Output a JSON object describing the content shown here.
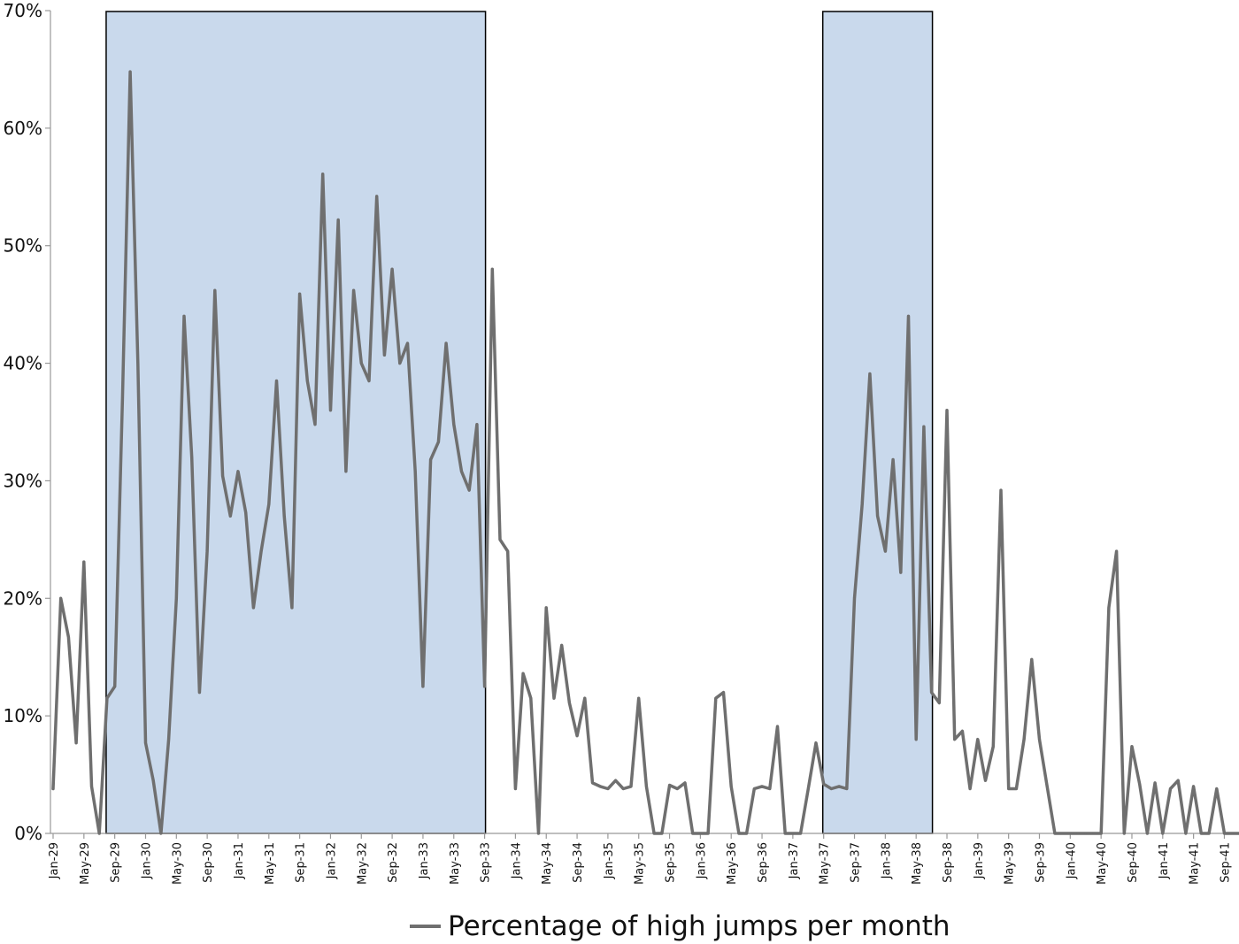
{
  "chart_data": {
    "type": "line",
    "series": [
      {
        "name": "Percentage of high jumps per month",
        "color": "#6f6f6f",
        "start_month": "Jan-29",
        "values": [
          3.8,
          20,
          16.7,
          7.7,
          23.1,
          4,
          0,
          11.5,
          12.5,
          37,
          64.8,
          40,
          7.7,
          4.5,
          0,
          8,
          20,
          44,
          32,
          12,
          24,
          46.2,
          30.4,
          27,
          30.8,
          27.3,
          19.2,
          24,
          28,
          38.5,
          27,
          19.2,
          45.9,
          38.5,
          34.8,
          56.1,
          36,
          52.2,
          30.8,
          46.2,
          40,
          38.5,
          54.2,
          40.7,
          48,
          40,
          41.7,
          30.8,
          12.5,
          31.8,
          33.3,
          41.7,
          34.8,
          30.8,
          29.2,
          34.8,
          12.5,
          48,
          25,
          24,
          3.8,
          13.6,
          11.5,
          0,
          19.2,
          11.5,
          16,
          11.1,
          8.3,
          11.5,
          4.3,
          4,
          3.8,
          4.5,
          3.8,
          4,
          11.5,
          4,
          0,
          0,
          4.1,
          3.8,
          4.3,
          0,
          0,
          0,
          11.5,
          12,
          4,
          0,
          0,
          3.8,
          4,
          3.8,
          9.1,
          0,
          0,
          0,
          3.8,
          7.7,
          4.2,
          3.8,
          4,
          3.8,
          20,
          28,
          39.1,
          27,
          24,
          31.8,
          22.2,
          44,
          8,
          34.6,
          12,
          11.1,
          36,
          8,
          8.7,
          3.8,
          8,
          4.5,
          7.4,
          29.2,
          3.8,
          3.8,
          8,
          14.8,
          8,
          4,
          0,
          0,
          0,
          0,
          0,
          0,
          0,
          19.2,
          24,
          0,
          7.4,
          4.2,
          0,
          4.3,
          0,
          3.8,
          4.5,
          0,
          4,
          0,
          0,
          3.8,
          0,
          0,
          0,
          0
        ]
      }
    ],
    "x_tick_labels": [
      "Jan-29",
      "May-29",
      "Sep-29",
      "Jan-30",
      "May-30",
      "Sep-30",
      "Jan-31",
      "May-31",
      "Sep-31",
      "Jan-32",
      "May-32",
      "Sep-32",
      "Jan-33",
      "May-33",
      "Sep-33",
      "Jan-34",
      "May-34",
      "Sep-34",
      "Jan-35",
      "May-35",
      "Sep-35",
      "Jan-36",
      "May-36",
      "Sep-36",
      "Jan-37",
      "May-37",
      "Sep-37",
      "Jan-38",
      "May-38",
      "Sep-38",
      "Jan-39",
      "May-39",
      "Sep-39",
      "Jan-40",
      "May-40",
      "Sep-40",
      "Jan-41",
      "May-41",
      "Sep-41"
    ],
    "y_tick_labels": [
      "0%",
      "10%",
      "20%",
      "30%",
      "40%",
      "50%",
      "60%",
      "70%"
    ],
    "ylim": [
      0,
      70
    ],
    "shaded_periods": [
      {
        "from": "Aug-29",
        "to": "Sep-33"
      },
      {
        "from": "May-37",
        "to": "Jul-38"
      }
    ],
    "shade_color": "#c9d9ec",
    "grid": false,
    "legend_position": "bottom-center"
  }
}
